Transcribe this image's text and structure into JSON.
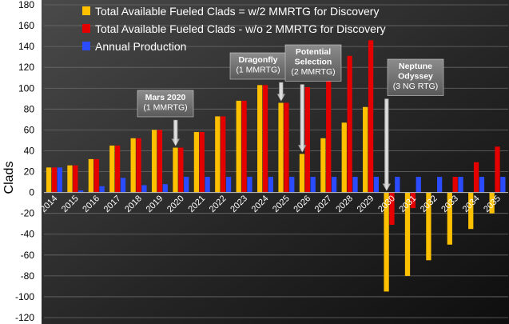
{
  "chart_data": {
    "type": "bar",
    "title": "",
    "xlabel": "",
    "ylabel": "Clads",
    "ylim": [
      -120,
      180
    ],
    "yticks": [
      -120,
      -100,
      -80,
      -60,
      -40,
      -20,
      0,
      20,
      40,
      60,
      80,
      100,
      120,
      140,
      160,
      180
    ],
    "grid": true,
    "legend_position": "top-left",
    "categories": [
      "2014",
      "2015",
      "2016",
      "2017",
      "2018",
      "2019",
      "2020",
      "2021",
      "2022",
      "2023",
      "2024",
      "2025",
      "2026",
      "2027",
      "2028",
      "2029",
      "2030",
      "2031",
      "2032",
      "2033",
      "2034",
      "2035"
    ],
    "series": [
      {
        "name": "Total Available Fueled Clads = w/2 MMRTG for Discovery",
        "color": "#FFC000",
        "values": [
          24,
          26,
          32,
          45,
          52,
          60,
          43,
          58,
          73,
          88,
          103,
          86,
          37,
          52,
          67,
          82,
          -95,
          -80,
          -65,
          -50,
          -35,
          -20
        ]
      },
      {
        "name": "Total Available Fueled Clads - w/o 2 MMRTG for Discovery",
        "color": "#E50000",
        "values": [
          24,
          26,
          32,
          45,
          52,
          60,
          43,
          58,
          73,
          88,
          103,
          86,
          101,
          116,
          131,
          146,
          -31,
          -15,
          0,
          15,
          29,
          44
        ]
      },
      {
        "name": "Annual Production",
        "color": "#2B4BFF",
        "values": [
          24,
          2,
          6,
          14,
          7,
          8,
          15,
          15,
          15,
          15,
          15,
          15,
          15,
          15,
          15,
          15,
          15,
          15,
          15,
          15,
          15,
          15
        ]
      }
    ],
    "annotations": [
      {
        "lines": [
          "Mars 2020",
          "(1 MMRTG)"
        ],
        "target_category": "2020",
        "target_value": 43
      },
      {
        "lines": [
          "Dragonfly",
          "(1 MMRTG)"
        ],
        "target_category": "2025",
        "target_value": 86
      },
      {
        "lines": [
          "Potential",
          "Selection",
          "(2 MMRTG)"
        ],
        "target_category": "2026",
        "target_value": 37
      },
      {
        "lines": [
          "Neptune",
          "Odyssey",
          "(3 NG RTG)"
        ],
        "target_category": "2030",
        "target_value": 0
      }
    ]
  }
}
